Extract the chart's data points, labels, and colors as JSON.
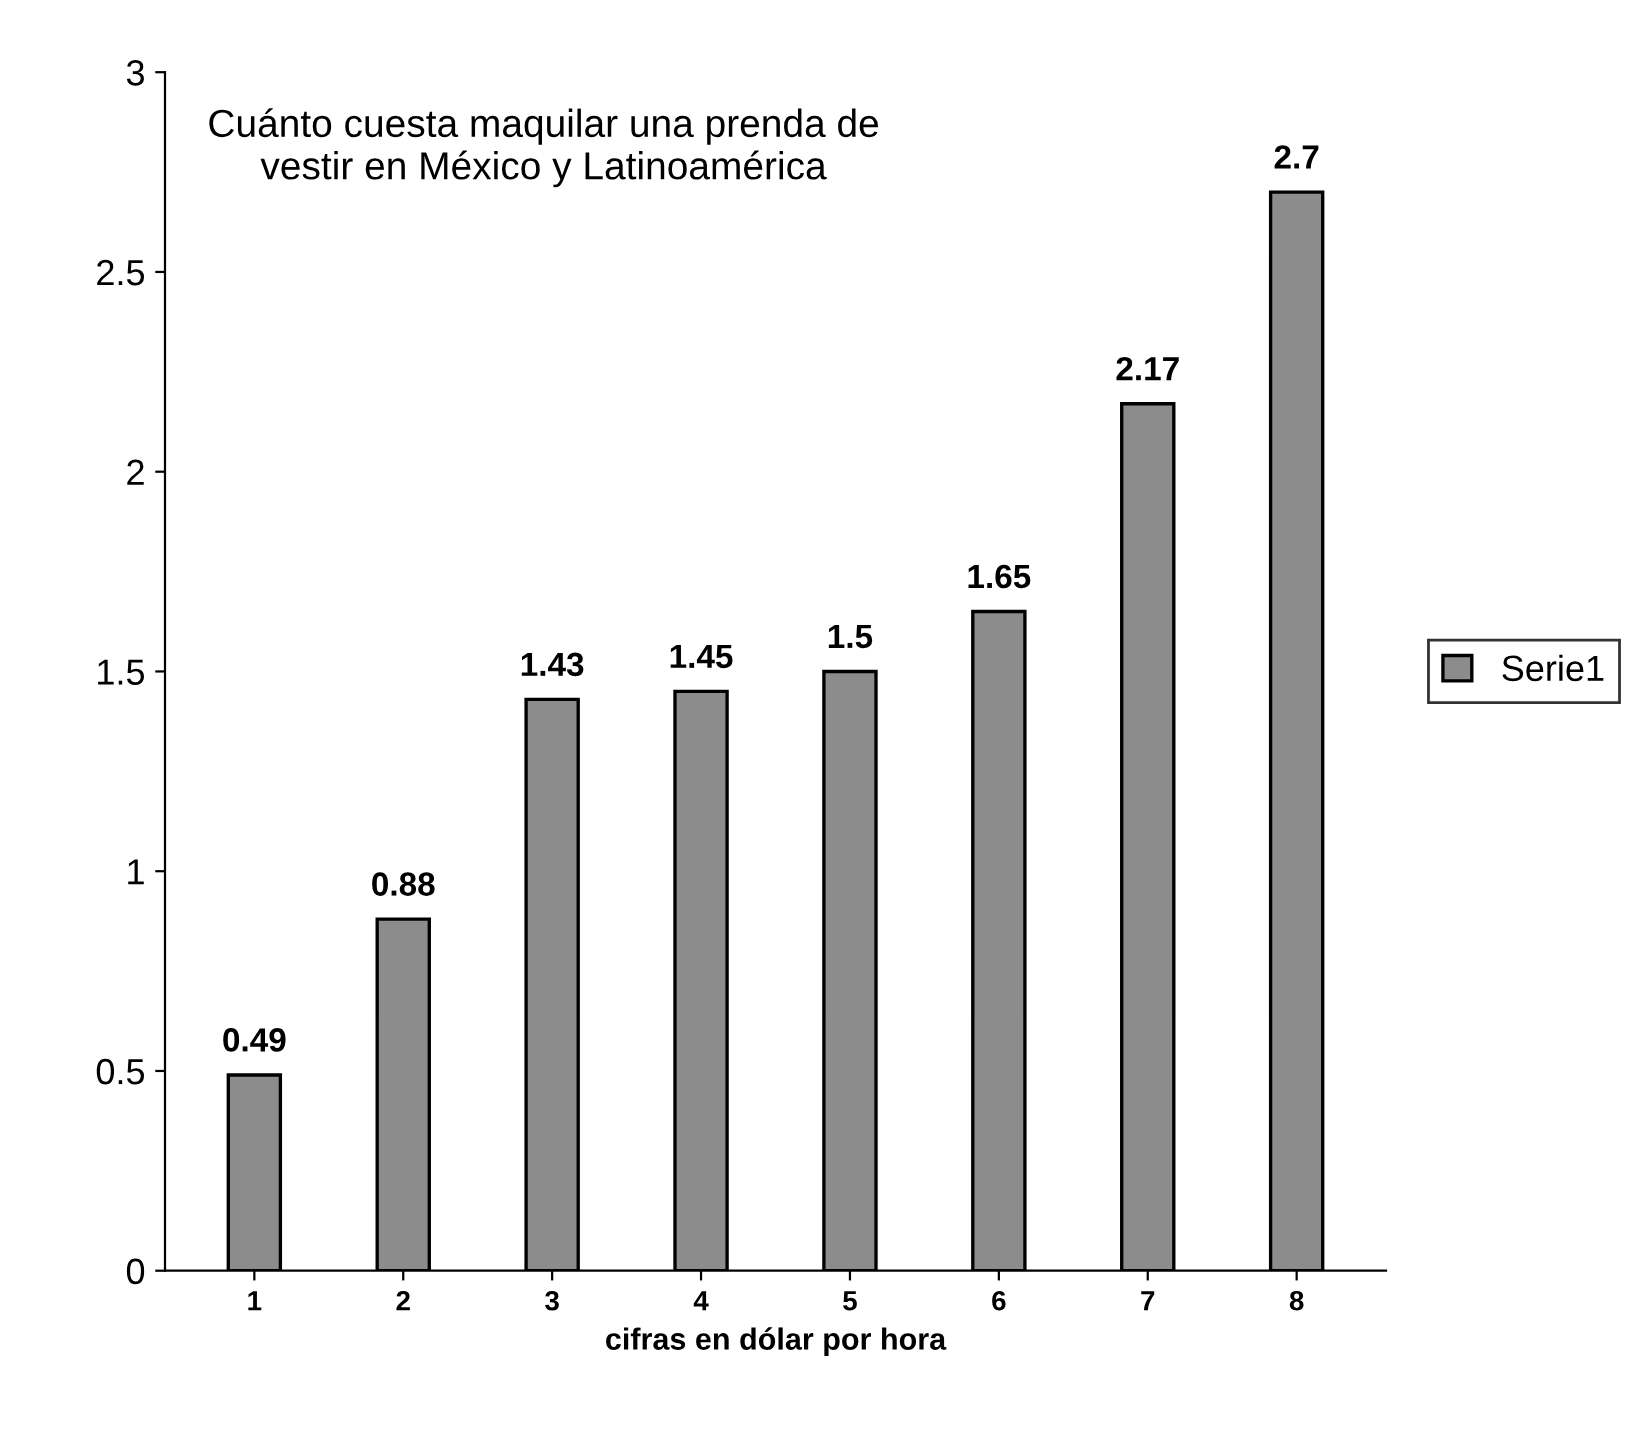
{
  "chart_data": {
    "type": "bar",
    "title": "Cuánto cuesta maquilar una prenda de vestir en México y Latinoamérica",
    "xlabel": "cifras en dólar por hora",
    "categories": [
      "1",
      "2",
      "3",
      "4",
      "5",
      "6",
      "7",
      "8"
    ],
    "series": [
      {
        "name": "Serie1",
        "color": "#8c8c8c",
        "values": [
          0.49,
          0.88,
          1.43,
          1.45,
          1.5,
          1.65,
          2.17,
          2.7
        ]
      }
    ],
    "ylim": [
      0,
      3
    ],
    "yticks": [
      0,
      0.5,
      1,
      1.5,
      2,
      2.5,
      3
    ],
    "data_labels": true,
    "legend": "right",
    "grid": false
  }
}
